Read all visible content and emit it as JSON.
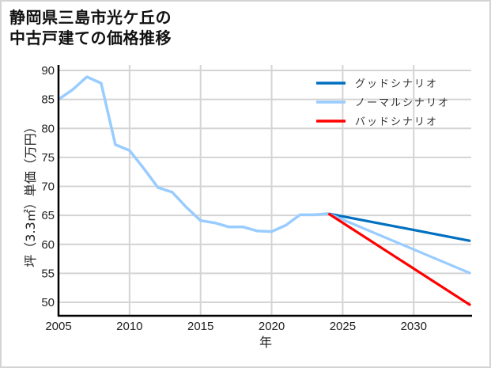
{
  "title": {
    "line1": "静岡県三島市光ケ丘の",
    "line2": "中古戸建ての価格推移"
  },
  "chart_data": {
    "type": "line",
    "title": "静岡県三島市光ケ丘の中古戸建ての価格推移",
    "xlabel": "年",
    "ylabel": "坪（3.3㎡）単価（万円）",
    "xlim": [
      2005,
      2034
    ],
    "ylim": [
      47.5,
      91
    ],
    "xticks": [
      2005,
      2010,
      2015,
      2020,
      2025,
      2030
    ],
    "yticks": [
      50,
      55,
      60,
      65,
      70,
      75,
      80,
      85,
      90
    ],
    "grid": true,
    "legend_position": "upper right",
    "series": [
      {
        "name": "ノーマルシナリオ",
        "color": "#99ccff",
        "role": "historical",
        "x": [
          2005,
          2006,
          2007,
          2008,
          2009,
          2010,
          2011,
          2012,
          2013,
          2014,
          2015,
          2016,
          2017,
          2018,
          2019,
          2020,
          2021,
          2022,
          2023,
          2024
        ],
        "values": [
          85.0,
          86.7,
          88.9,
          87.8,
          77.2,
          76.2,
          73.1,
          69.8,
          69.0,
          66.4,
          64.1,
          63.7,
          63.0,
          63.0,
          62.3,
          62.2,
          63.3,
          65.1,
          65.1,
          65.3
        ]
      },
      {
        "name": "グッドシナリオ",
        "color": "#0070c0",
        "role": "projection",
        "x": [
          2024,
          2034
        ],
        "values": [
          65.3,
          60.6
        ]
      },
      {
        "name": "ノーマルシナリオ",
        "color": "#99ccff",
        "role": "projection",
        "x": [
          2024,
          2034
        ],
        "values": [
          65.3,
          55.0
        ]
      },
      {
        "name": "バッドシナリオ",
        "color": "#ff0000",
        "role": "projection",
        "x": [
          2024,
          2034
        ],
        "values": [
          65.3,
          49.5
        ]
      }
    ]
  },
  "legend": [
    {
      "label": "グッドシナリオ",
      "color": "#0070c0"
    },
    {
      "label": "ノーマルシナリオ",
      "color": "#99ccff"
    },
    {
      "label": "バッドシナリオ",
      "color": "#ff0000"
    }
  ],
  "axes": {
    "x_label": "年",
    "y_label": "坪（3.3㎡）単価（万円）",
    "x_ticks": [
      "2005",
      "2010",
      "2015",
      "2020",
      "2025",
      "2030"
    ],
    "y_ticks": [
      "90",
      "85",
      "80",
      "75",
      "70",
      "65",
      "60",
      "55",
      "50"
    ]
  },
  "colors": {
    "grid": "#d4d4d4",
    "axis": "#000000",
    "frame": "#d4d4d4"
  }
}
